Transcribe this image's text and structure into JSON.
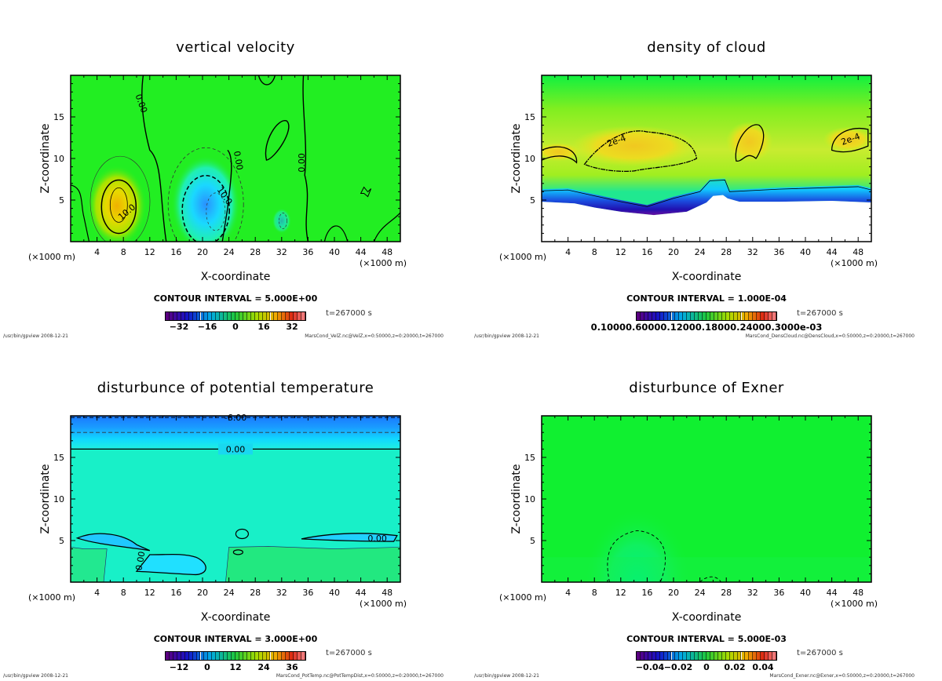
{
  "chart_data": [
    {
      "type": "heatmap",
      "title": "vertical velocity",
      "xlabel": "X-coordinate",
      "ylabel": "Z-coordinate",
      "x_unit_left": "(×1000 m)",
      "x_unit_right": "(×1000 m)",
      "xlim": [
        0,
        50
      ],
      "ylim": [
        0,
        20
      ],
      "xticks": [
        "4",
        "8",
        "12",
        "16",
        "20",
        "24",
        "28",
        "32",
        "36",
        "40",
        "44",
        "48"
      ],
      "yticks": [
        "5",
        "10",
        "15"
      ],
      "contour_interval": "CONTOUR INTERVAL = 5.000E+00",
      "colorbar_ticks": [
        "−32",
        "−16",
        "0",
        "16",
        "32"
      ],
      "colorbar_range": [
        -40,
        40
      ],
      "time_label": "t=267000 s",
      "contour_labels": [
        "0.00",
        "0.00",
        "0.00",
        "10.0",
        "10.0"
      ],
      "background": "#22ee22",
      "features": [
        {
          "kind": "positive",
          "x": 7,
          "z": 4.5,
          "value": 15,
          "color": "#f0b000"
        },
        {
          "kind": "negative",
          "x": 21,
          "z": 4.5,
          "value": -12,
          "color": "#3aa8ff"
        }
      ],
      "footer_left": "/usr/bin/gpview  2008-12-21",
      "footer_right": "MarsCond_VelZ.nc@VelZ,x=0:50000,z=0:20000,t=267000"
    },
    {
      "type": "heatmap",
      "title": "density of cloud",
      "xlabel": "X-coordinate",
      "ylabel": "Z-coordinate",
      "x_unit_left": "(×1000 m)",
      "x_unit_right": "(×1000 m)",
      "xlim": [
        0,
        50
      ],
      "ylim": [
        0,
        20
      ],
      "xticks": [
        "4",
        "8",
        "12",
        "16",
        "20",
        "24",
        "28",
        "32",
        "36",
        "40",
        "44",
        "48"
      ],
      "yticks": [
        "5",
        "10",
        "15"
      ],
      "contour_interval": "CONTOUR INTERVAL = 1.000E-04",
      "colorbar_tick_string": "0.10000.60000.12000.18000.24000.3000e-03",
      "colorbar_range": [
        0.0001,
        0.0003
      ],
      "time_label": "t=267000 s",
      "contour_labels": [
        "2e-4",
        "2e-4"
      ],
      "cloud_base_km": 5,
      "footer_left": "/usr/bin/gpview  2008-12-21",
      "footer_right": "MarsCond_DensCloud.nc@DensCloud,x=0:50000,z=0:20000,t=267000"
    },
    {
      "type": "heatmap",
      "title": "disturbunce of potential temperature",
      "xlabel": "X-coordinate",
      "ylabel": "Z-coordinate",
      "x_unit_left": "(×1000 m)",
      "x_unit_right": "(×1000 m)",
      "xlim": [
        0,
        50
      ],
      "ylim": [
        0,
        20
      ],
      "xticks": [
        "4",
        "8",
        "12",
        "16",
        "20",
        "24",
        "28",
        "32",
        "36",
        "40",
        "44",
        "48"
      ],
      "yticks": [
        "5",
        "10",
        "15"
      ],
      "contour_interval": "CONTOUR INTERVAL = 3.000E+00",
      "colorbar_ticks": [
        "−12",
        "0",
        "12",
        "24",
        "36"
      ],
      "colorbar_range": [
        -18,
        42
      ],
      "time_label": "t=267000 s",
      "contour_labels": [
        "-6.00",
        "0.00",
        "0.00",
        "0.00"
      ],
      "footer_left": "/usr/bin/gpview  2008-12-21",
      "footer_right": "MarsCond_PotTemp.nc@PotTempDist,x=0:50000,z=0:20000,t=267000"
    },
    {
      "type": "heatmap",
      "title": "disturbunce of Exner",
      "xlabel": "X-coordinate",
      "ylabel": "Z-coordinate",
      "x_unit_left": "(×1000 m)",
      "x_unit_right": "(×1000 m)",
      "xlim": [
        0,
        50
      ],
      "ylim": [
        0,
        20
      ],
      "xticks": [
        "4",
        "8",
        "12",
        "16",
        "20",
        "24",
        "28",
        "32",
        "36",
        "40",
        "44",
        "48"
      ],
      "yticks": [
        "5",
        "10",
        "15"
      ],
      "contour_interval": "CONTOUR INTERVAL = 5.000E-03",
      "colorbar_ticks": [
        "−0.04",
        "−0.02",
        "0",
        "0.02",
        "0.04"
      ],
      "colorbar_range": [
        -0.05,
        0.05
      ],
      "time_label": "t=267000 s",
      "footer_left": "/usr/bin/gpview  2008-12-21",
      "footer_right": "MarsCond_Exner.nc@Exner,x=0:50000,z=0:20000,t=267000"
    }
  ]
}
